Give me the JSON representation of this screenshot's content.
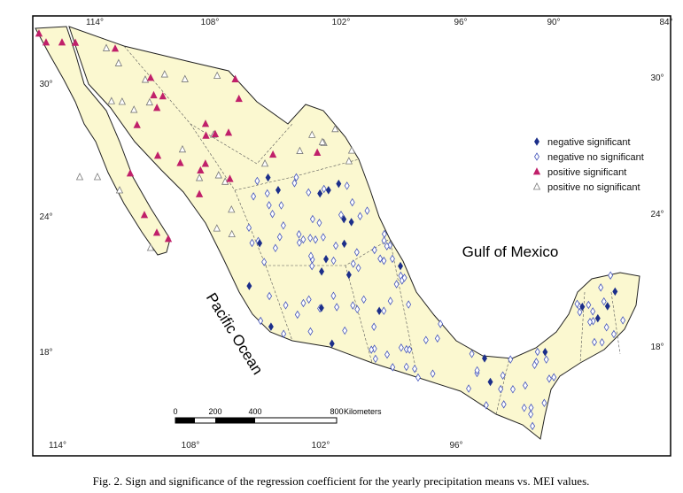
{
  "map": {
    "frame": {
      "top_ticks": [
        "114°",
        "108°",
        "102°",
        "96°",
        "90°",
        "84°"
      ],
      "bottom_ticks": [
        "114°",
        "108°",
        "102°",
        "96°"
      ],
      "left_ticks": [
        "30°",
        "24°",
        "18°"
      ],
      "right_ticks": [
        "30°",
        "24°",
        "18°"
      ]
    },
    "legend": {
      "items": [
        "negative significant",
        "negative no significant",
        "positive significant",
        "positive no significant"
      ]
    },
    "labels": {
      "gulf": "Gulf of Mexico",
      "pacific": "Pacific Ocean"
    },
    "scale_bar": {
      "ticks": [
        "0",
        "200",
        "400",
        "800"
      ],
      "unit": "Kilometers"
    }
  },
  "caption": "Fig. 2. Sign and significance of the regression coefficient for the yearly precipitation means vs. MEI values."
}
